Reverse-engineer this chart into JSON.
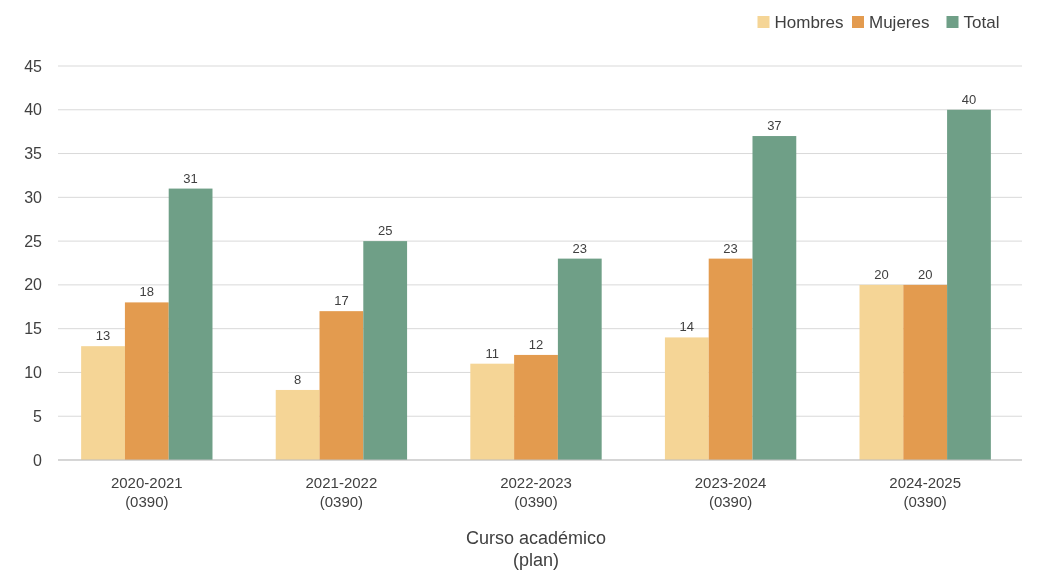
{
  "chart_data": {
    "type": "bar",
    "xlabel": "Curso académico\n(plan)",
    "categories": [
      "2020-2021\n(0390)",
      "2021-2022\n(0390)",
      "2022-2023\n(0390)",
      "2023-2024\n(0390)",
      "2024-2025\n(0390)"
    ],
    "series": [
      {
        "name": "Hombres",
        "color": "#f5d596",
        "values": [
          13,
          8,
          11,
          14,
          20
        ]
      },
      {
        "name": "Mujeres",
        "color": "#e39b4f",
        "values": [
          18,
          17,
          12,
          23,
          20
        ]
      },
      {
        "name": "Total",
        "color": "#6f9f87",
        "values": [
          31,
          25,
          23,
          37,
          40
        ]
      }
    ],
    "ylim": [
      0,
      45
    ],
    "yticks": [
      0,
      5,
      10,
      15,
      20,
      25,
      30,
      35,
      40,
      45
    ],
    "grid": "y",
    "legend": "top right",
    "data_labels": true
  }
}
